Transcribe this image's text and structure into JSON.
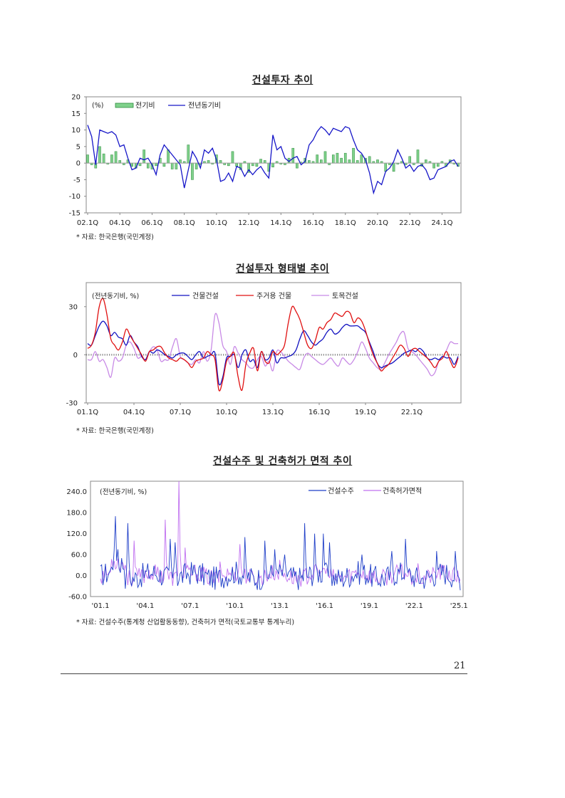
{
  "page_number": "21",
  "chart1": {
    "title": "건설투자 추이",
    "source": "* 자료: 한국은행(국민계정)"
  },
  "chart2": {
    "title": "건설투자 형태별 추이",
    "source": "* 자료: 한국은행(국민계정)"
  },
  "chart3": {
    "title": "건설수주 및 건축허가 면적 추이",
    "source": "* 자료: 건설수주(통계청 산업활동동향), 건축허가 면적(국토교통부 통계누리)"
  },
  "chart_data": [
    {
      "type": "bar+line",
      "title": "건설투자 추이",
      "unit_label": "(%)",
      "ylim": [
        -15,
        20
      ],
      "yticks": [
        20,
        15,
        10,
        5,
        0,
        -5,
        -10,
        -15
      ],
      "xticks": [
        "02.1Q",
        "04.1Q",
        "06.1Q",
        "08.1Q",
        "10.1Q",
        "12.1Q",
        "14.1Q",
        "16.1Q",
        "18.1Q",
        "20.1Q",
        "22.1Q",
        "24.1Q"
      ],
      "n_points": 93,
      "legend_position": "top-left",
      "series": [
        {
          "name": "전기비",
          "kind": "bar",
          "color": "#7fd18b",
          "stroke": "#2e8b3e",
          "values": [
            2.5,
            -0.5,
            -1.5,
            5.0,
            2.8,
            -0.3,
            2.5,
            3.5,
            0.8,
            -0.5,
            1.0,
            -1.0,
            -1.5,
            -0.8,
            4.0,
            -1.5,
            -1.8,
            -0.8,
            1.5,
            -1.0,
            4.0,
            -1.8,
            -1.8,
            1.0,
            0.5,
            5.5,
            -5.0,
            -1.8,
            -0.5,
            0.5,
            0.8,
            -0.3,
            2.5,
            0.8,
            -0.5,
            -0.8,
            3.5,
            -1.0,
            -2.0,
            0.5,
            -2.8,
            -0.8,
            -1.0,
            1.2,
            0.8,
            -2.5,
            -1.2,
            0.5,
            -0.3,
            -0.5,
            1.5,
            4.5,
            -1.5,
            0.3,
            1.5,
            0.8,
            0.5,
            2.5,
            1.0,
            3.5,
            -0.5,
            2.5,
            3.0,
            1.5,
            3.0,
            1.0,
            4.5,
            0.8,
            2.5,
            1.5,
            2.0,
            0.5,
            1.0,
            0.5,
            -2.5,
            -0.5,
            -2.5,
            -0.3,
            0.5,
            -0.5,
            2.0,
            -0.5,
            4.0,
            -1.0,
            1.0,
            0.5,
            -1.5,
            -1.0,
            0.5,
            -1.0,
            1.0,
            -0.3,
            -1.0
          ]
        },
        {
          "name": "전년동기비",
          "kind": "line",
          "color": "#1616c8",
          "values": [
            11.5,
            8.0,
            -0.5,
            10.0,
            9.5,
            9.0,
            9.5,
            8.5,
            5.0,
            5.5,
            1.5,
            -2.0,
            -1.5,
            1.5,
            1.0,
            1.5,
            -0.5,
            -3.5,
            2.5,
            5.5,
            4.0,
            2.5,
            1.0,
            -0.5,
            -7.5,
            -2.0,
            3.5,
            1.5,
            -1.5,
            4.0,
            3.0,
            4.5,
            1.0,
            -5.5,
            -5.0,
            -3.0,
            -5.5,
            -1.0,
            -1.5,
            -4.0,
            -2.0,
            -3.5,
            -2.0,
            -1.0,
            -3.0,
            -4.5,
            8.5,
            4.0,
            5.0,
            1.5,
            0.5,
            1.5,
            2.0,
            -0.5,
            0.5,
            5.5,
            7.0,
            9.5,
            11.0,
            10.0,
            8.5,
            10.5,
            10.0,
            9.5,
            11.0,
            10.5,
            7.0,
            4.0,
            3.0,
            1.0,
            -3.0,
            -9.0,
            -5.5,
            -6.5,
            -2.5,
            -1.5,
            0.5,
            4.0,
            1.5,
            -1.5,
            -0.5,
            -2.5,
            -1.0,
            -0.5,
            -2.0,
            -5.0,
            -4.5,
            -2.0,
            -1.5,
            -1.0,
            0.5,
            1.0,
            -1.0
          ]
        }
      ]
    },
    {
      "type": "line",
      "title": "건설투자 형태별 추이",
      "unit_label": "(전년동기비, %)",
      "ylim": [
        -30,
        45
      ],
      "yticks": [
        30,
        0,
        -30
      ],
      "xticks": [
        "01.1Q",
        "04.1Q",
        "07.1Q",
        "10.1Q",
        "13.1Q",
        "16.1Q",
        "19.1Q",
        "22.1Q"
      ],
      "n_points": 97,
      "legend_position": "top",
      "series": [
        {
          "name": "건물건설",
          "color": "#1010c0",
          "values": [
            7,
            6,
            12,
            18,
            21,
            18,
            12,
            14,
            11,
            10,
            6,
            12,
            8,
            5,
            -1,
            -3,
            2,
            1,
            3,
            2,
            0,
            -1,
            -2,
            0,
            1,
            1,
            -1,
            -3,
            0,
            2,
            -2,
            -1,
            0,
            1,
            -18,
            -14,
            -2,
            -1,
            0,
            -8,
            0,
            3,
            -4,
            -3,
            -8,
            2,
            -3,
            -2,
            3,
            -5,
            -2,
            -2,
            -1,
            0,
            3,
            10,
            15,
            12,
            8,
            6,
            8,
            10,
            14,
            16,
            13,
            14,
            17,
            19,
            18,
            18,
            18,
            16,
            14,
            8,
            2,
            -5,
            -8,
            -7,
            -6,
            -5,
            -3,
            -1,
            1,
            2,
            3,
            2,
            4,
            2,
            -2,
            -3,
            -2,
            -3,
            -1,
            -2,
            -2,
            -6,
            -1
          ]
        },
        {
          "name": "주거용 건물",
          "color": "#e01010",
          "values": [
            4,
            6,
            14,
            30,
            35,
            25,
            10,
            6,
            3,
            8,
            16,
            12,
            8,
            4,
            0,
            -4,
            2,
            3,
            5,
            5,
            1,
            -2,
            -3,
            -4,
            -2,
            -3,
            -5,
            -8,
            -4,
            -3,
            -2,
            2,
            0,
            -3,
            -22,
            -16,
            -4,
            -1,
            1,
            -14,
            -22,
            -6,
            1,
            4,
            -10,
            2,
            -4,
            -5,
            2,
            0,
            2,
            6,
            20,
            30,
            27,
            22,
            14,
            6,
            4,
            9,
            17,
            16,
            20,
            22,
            26,
            25,
            24,
            27,
            26,
            20,
            23,
            21,
            15,
            7,
            0,
            -5,
            -10,
            -8,
            -6,
            -2,
            2,
            6,
            4,
            -1,
            3,
            4,
            2,
            0,
            -2,
            -5,
            -8,
            -4,
            -2,
            2,
            -4,
            -8,
            -2
          ]
        },
        {
          "name": "토목건설",
          "color": "#c88ae6",
          "values": [
            -3,
            -3,
            2,
            -4,
            -3,
            -8,
            -14,
            -2,
            -4,
            -2,
            6,
            8,
            4,
            -2,
            -1,
            -3,
            2,
            5,
            3,
            -4,
            -3,
            -3,
            5,
            10,
            -1,
            -3,
            -5,
            -6,
            -3,
            -5,
            2,
            -4,
            3,
            25,
            20,
            6,
            2,
            -6,
            5,
            1,
            -3,
            -5,
            -8,
            -8,
            -3,
            -1,
            -7,
            -4,
            -10,
            2,
            2,
            -1,
            -4,
            -6,
            -8,
            -9,
            -2,
            1,
            -1,
            -3,
            -5,
            -6,
            -4,
            -2,
            -5,
            -7,
            -2,
            -4,
            -6,
            -3,
            2,
            8,
            4,
            -2,
            -5,
            -8,
            -9,
            -5,
            0,
            4,
            8,
            13,
            14,
            4,
            2,
            0,
            -3,
            -6,
            -9,
            -13,
            -11,
            -4,
            -2,
            3,
            8,
            7,
            7
          ]
        }
      ]
    },
    {
      "type": "line",
      "title": "건설수주 및 건축허가 면적 추이",
      "unit_label": "(전년동기비, %)",
      "ylim": [
        -60,
        270
      ],
      "yticks": [
        "240.0",
        "180.0",
        "120.0",
        "60.0",
        "0.0",
        "-60.0"
      ],
      "xticks": [
        "'01.1",
        "'04.1",
        "'07.1",
        "'10.1",
        "'13.1",
        "'16.1",
        "'19.1",
        "'22.1",
        "'25.1"
      ],
      "x_range_months": 289,
      "legend_position": "top-right",
      "series": [
        {
          "name": "건설수주",
          "color": "#1f3fc8",
          "spikes": [
            [
              12,
              170
            ],
            [
              14,
              75
            ],
            [
              22,
              150
            ],
            [
              56,
              105
            ],
            [
              60,
              95
            ],
            [
              116,
              110
            ],
            [
              132,
              100
            ],
            [
              140,
              75
            ],
            [
              148,
              60
            ],
            [
              164,
              150
            ],
            [
              172,
              120
            ],
            [
              179,
              120
            ],
            [
              184,
              95
            ],
            [
              210,
              60
            ],
            [
              234,
              70
            ],
            [
              245,
              105
            ],
            [
              270,
              70
            ],
            [
              285,
              70
            ]
          ]
        },
        {
          "name": "건축허가면적",
          "color": "#c070f0",
          "spikes": [
            [
              20,
              30
            ],
            [
              27,
              100
            ],
            [
              52,
              160
            ],
            [
              63,
              270
            ],
            [
              68,
              80
            ],
            [
              96,
              40
            ],
            [
              112,
              90
            ],
            [
              144,
              45
            ],
            [
              180,
              20
            ],
            [
              255,
              35
            ]
          ]
        }
      ]
    }
  ]
}
